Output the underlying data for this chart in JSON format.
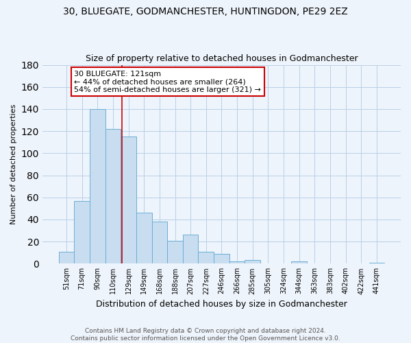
{
  "title": "30, BLUEGATE, GODMANCHESTER, HUNTINGDON, PE29 2EZ",
  "subtitle": "Size of property relative to detached houses in Godmanchester",
  "xlabel": "Distribution of detached houses by size in Godmanchester",
  "ylabel": "Number of detached properties",
  "categories": [
    "51sqm",
    "71sqm",
    "90sqm",
    "110sqm",
    "129sqm",
    "149sqm",
    "168sqm",
    "188sqm",
    "207sqm",
    "227sqm",
    "246sqm",
    "266sqm",
    "285sqm",
    "305sqm",
    "324sqm",
    "344sqm",
    "363sqm",
    "383sqm",
    "402sqm",
    "422sqm",
    "441sqm"
  ],
  "values": [
    11,
    57,
    140,
    122,
    115,
    46,
    38,
    21,
    26,
    11,
    9,
    2,
    3,
    0,
    0,
    2,
    0,
    0,
    0,
    0,
    1
  ],
  "bar_color": "#c8ddf0",
  "bar_edge_color": "#6aaed6",
  "background_color": "#eef4fb",
  "grid_color": "#b8cfe8",
  "annotation_text": "30 BLUEGATE: 121sqm\n← 44% of detached houses are smaller (264)\n54% of semi-detached houses are larger (321) →",
  "annotation_box_color": "#ffffff",
  "annotation_border_color": "#cc0000",
  "red_line_x": 3.58,
  "ylim": [
    0,
    180
  ],
  "footer": "Contains HM Land Registry data © Crown copyright and database right 2024.\nContains public sector information licensed under the Open Government Licence v3.0.",
  "title_fontsize": 10,
  "subtitle_fontsize": 9,
  "xlabel_fontsize": 9,
  "ylabel_fontsize": 8,
  "tick_fontsize": 7,
  "footer_fontsize": 6.5,
  "ann_fontsize": 8
}
